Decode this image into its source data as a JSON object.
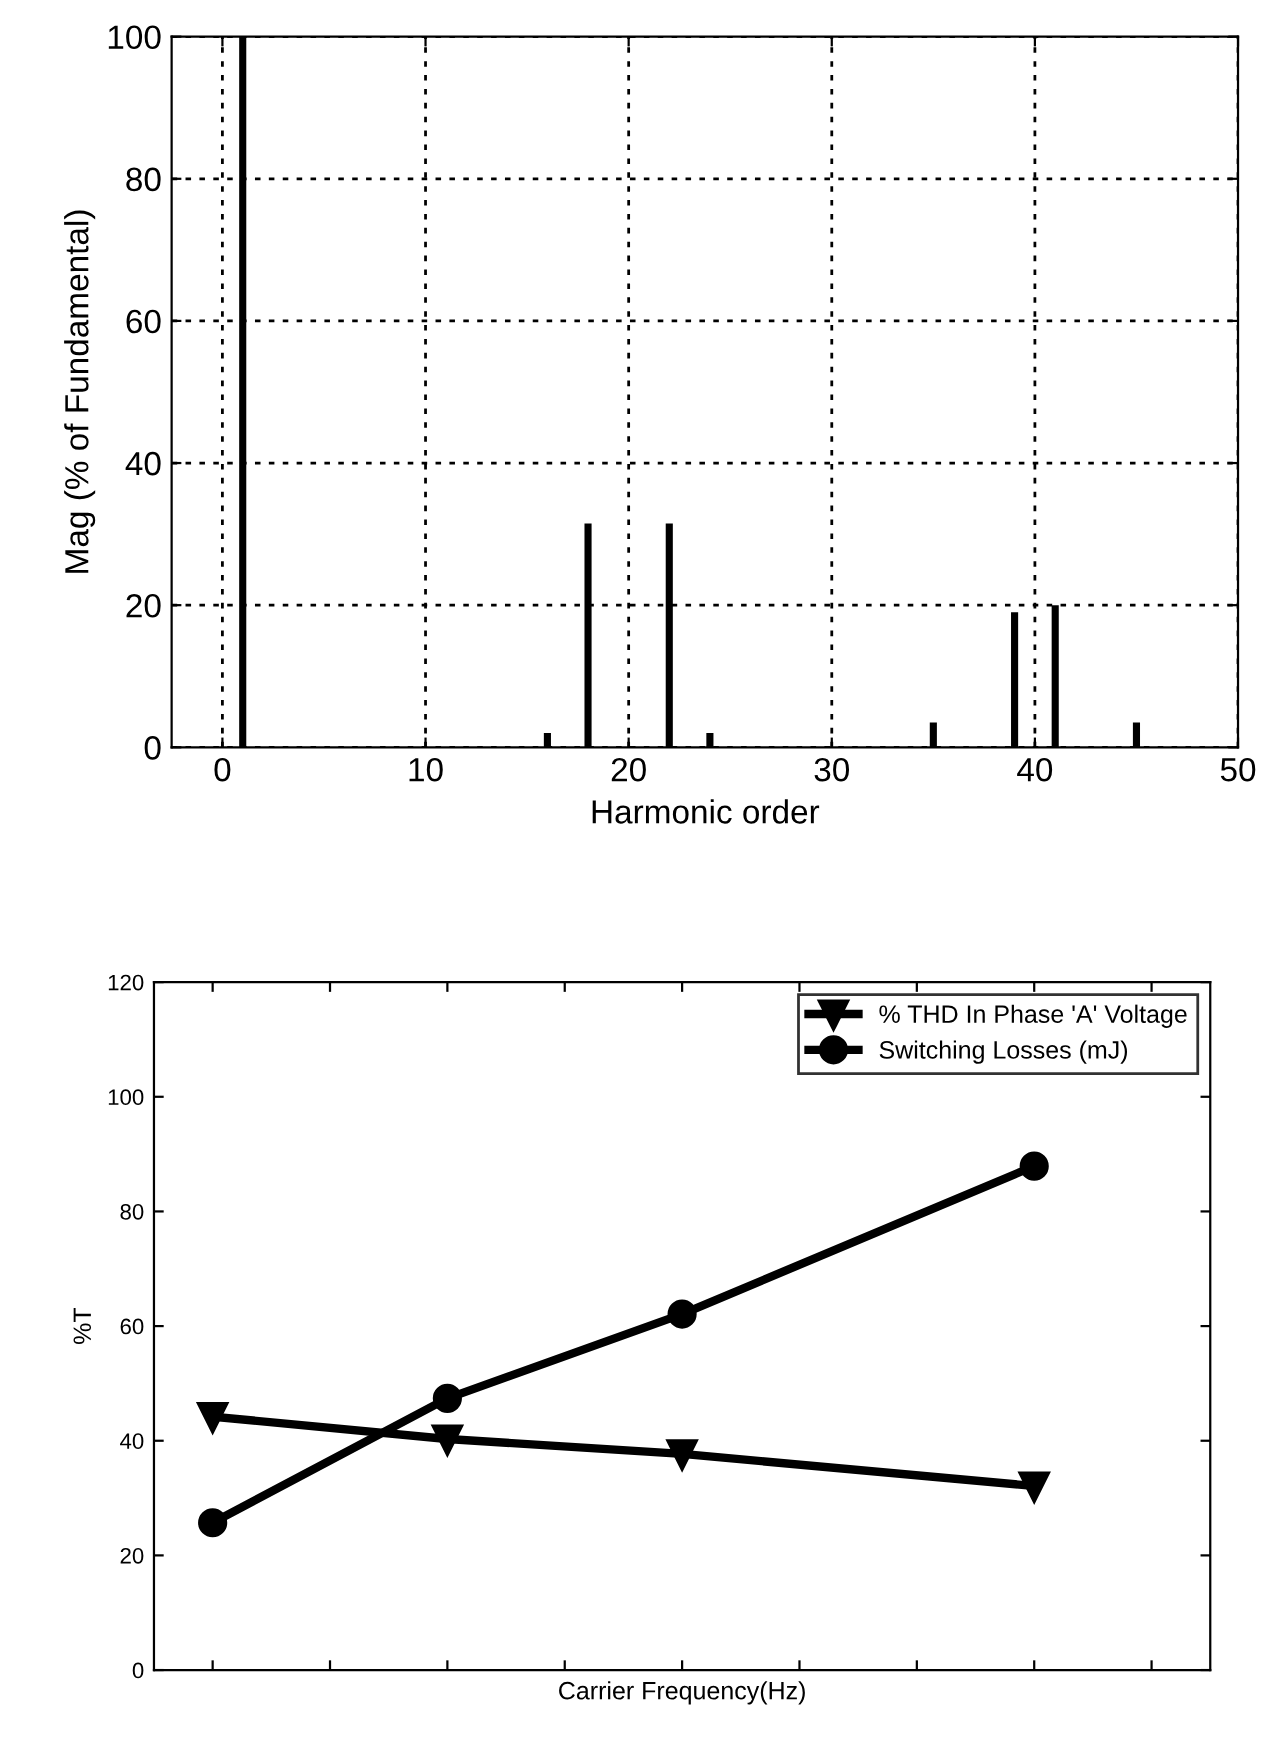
{
  "chart_data": [
    {
      "type": "bar",
      "xlabel": "Harmonic order",
      "ylabel": "Mag (% of Fundamental)",
      "x": [
        1,
        2,
        3,
        4,
        5,
        6,
        7,
        8,
        9,
        10,
        11,
        12,
        13,
        14,
        15,
        16,
        17,
        18,
        19,
        20,
        21,
        22,
        23,
        24,
        25,
        26,
        27,
        28,
        29,
        30,
        31,
        32,
        33,
        34,
        35,
        36,
        37,
        38,
        39,
        40,
        41,
        42,
        43,
        44,
        45,
        46,
        47,
        48,
        49,
        50
      ],
      "values": [
        100,
        0,
        0,
        0,
        0,
        0,
        0,
        0,
        0,
        0,
        0,
        0,
        0,
        0,
        0,
        2,
        0,
        31.5,
        0,
        0,
        0,
        31.5,
        0,
        2,
        0,
        0,
        0,
        0,
        0,
        0,
        0,
        0,
        0,
        0,
        3.5,
        0,
        0,
        0,
        19,
        0,
        20,
        0,
        0,
        0,
        3.5,
        0,
        0,
        0,
        0,
        0
      ],
      "color": "#000000",
      "xlim": [
        -2.5,
        50
      ],
      "xticks": [
        0,
        10,
        20,
        30,
        40,
        50
      ],
      "ylim": [
        0,
        100
      ],
      "yticks": [
        0,
        20,
        40,
        60,
        80,
        100
      ],
      "grid": true
    },
    {
      "type": "line",
      "xlabel": "Carrier Frequency(Hz)",
      "ylabel": "%T",
      "categories": [
        null,
        null,
        null,
        null,
        null,
        null,
        null,
        null,
        null
      ],
      "series": [
        {
          "name": "% THD In Phase 'A' Voltage",
          "color": "#000000",
          "marker": "triangle",
          "values": [
            44.2,
            null,
            40.3,
            null,
            37.7,
            null,
            null,
            32.1,
            null
          ]
        },
        {
          "name": "Switching Losses (mJ)",
          "color": "#000000",
          "marker": "circle",
          "values": [
            25.7,
            null,
            47.4,
            null,
            62.1,
            null,
            null,
            87.9,
            null
          ]
        }
      ],
      "ylim": [
        0,
        120
      ],
      "yticks": [
        0,
        20,
        40,
        60,
        80,
        100,
        120
      ],
      "tick_labels": "y",
      "legend": "top right",
      "line_style": "solid"
    }
  ]
}
